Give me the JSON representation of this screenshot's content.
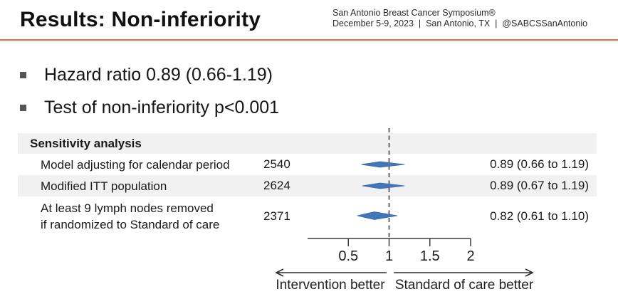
{
  "slide": {
    "title": "Results: Non-inferiority",
    "header": {
      "line1": "San Antonio Breast Cancer Symposium®",
      "line2": "December 5-9, 2023  |  San Antonio, TX  |  @SABCSSanAntonio"
    },
    "bullets": [
      "Hazard ratio 0.89 (0.66-1.19)",
      "Test of non-inferiority p<0.001"
    ]
  },
  "table": {
    "header": "Sensitivity analysis",
    "rows": [
      {
        "label": "Model adjusting for calendar period",
        "label2": "",
        "n": "2540",
        "effect": "0.89 (0.66 to 1.19)"
      },
      {
        "label": "Modified ITT population",
        "label2": "",
        "n": "2624",
        "effect": "0.89 (0.67 to 1.19)"
      },
      {
        "label": "At least 9 lymph nodes removed",
        "label2": "if randomized to Standard of care",
        "n": "2371",
        "effect": "0.82 (0.61 to 1.10)"
      }
    ]
  },
  "chart_data": {
    "type": "forest",
    "title": "Sensitivity analysis",
    "rows": [
      {
        "label": "Model adjusting for calendar period",
        "n": 2540,
        "estimate": 0.89,
        "ci_low": 0.66,
        "ci_high": 1.19
      },
      {
        "label": "Modified ITT population",
        "n": 2624,
        "estimate": 0.89,
        "ci_low": 0.67,
        "ci_high": 1.19
      },
      {
        "label": "At least 9 lymph nodes removed if randomized to Standard of care",
        "n": 2371,
        "estimate": 0.82,
        "ci_low": 0.61,
        "ci_high": 1.1
      }
    ],
    "axis": {
      "min": 0,
      "max": 2,
      "ticks": [
        0.5,
        1,
        1.5,
        2
      ],
      "reference_line": 1,
      "scale": "linear"
    },
    "arrows": {
      "left_label": "Intervention better",
      "right_label": "Standard of care better"
    },
    "colors": {
      "diamond": "#4377b8",
      "diamond_edge": "#3a69a8",
      "reference_line": "#4d545e",
      "axis": "#3c3c3c",
      "arrow": "#2b2b2b",
      "row_shade": "#f1f1f1",
      "accent_rule": "#c97f5e"
    }
  }
}
